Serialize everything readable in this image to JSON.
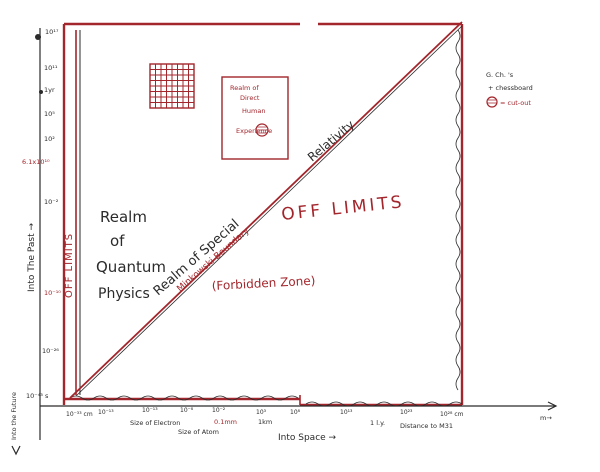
{
  "left_axis": {
    "ticks": [
      "10¹⁷",
      "10¹¹",
      "1yr",
      "10⁵",
      "10²",
      "6.1x10¹⁰",
      "10⁻²",
      "10⁻¹⁰",
      "10⁻²⁶",
      "10⁻⁴³ s"
    ],
    "label_rotated": "Into The Past →",
    "label_bottom": "Into the Future"
  },
  "bottom_axis": {
    "ticks": [
      "10⁻³³ cm",
      "10⁻¹³",
      "10⁻¹³",
      "10⁻⁸",
      "10⁻²",
      "10³",
      "10⁸",
      "10¹³",
      "10²³",
      "10²⁸ cm"
    ],
    "notes": [
      "Size of Electron",
      "Size of Atom",
      "0.1mm",
      "1km",
      "1 l.y.",
      "Distance to M31"
    ],
    "label": "Into Space →",
    "corner_note": "m→"
  },
  "regions": {
    "quantum": [
      "Realm",
      "of",
      "Quantum",
      "Physics"
    ],
    "off_limits_left": "OFF LIMITS",
    "off_limits_main": "OFF LIMITS",
    "forbidden": "(Forbidden Zone)",
    "special_rel": "Realm of Special",
    "minkowski": "Minkowski Boundary",
    "relativity": "Relativity",
    "direct_exp": [
      "Realm of",
      "Direct",
      "Human",
      "Experience"
    ]
  },
  "legend": {
    "line1": "G. Ch. 's",
    "line2": "+ chessboard",
    "line3": "= cut-out"
  },
  "colors": {
    "red_ink": "#a3262c",
    "black_ink": "#2b2b2b"
  }
}
